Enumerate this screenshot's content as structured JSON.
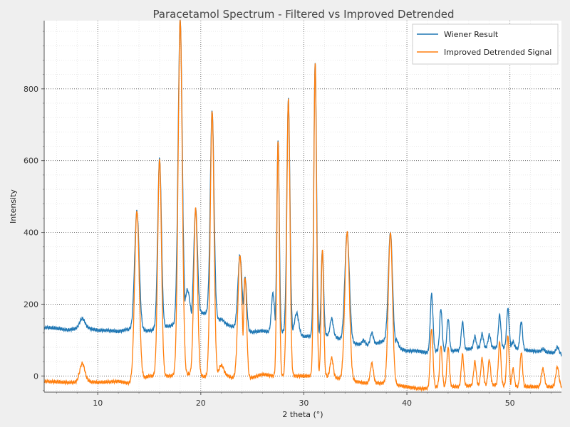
{
  "chart_data": {
    "type": "line",
    "title": "Paracetamol Spectrum - Filtered vs Improved Detrended",
    "xlabel": "2 theta (°)",
    "ylabel": "Intensity",
    "xlim": [
      4.8,
      55
    ],
    "ylim": [
      -45,
      990
    ],
    "x_ticks": [
      10,
      20,
      30,
      40,
      50
    ],
    "y_ticks": [
      0,
      200,
      400,
      600,
      800
    ],
    "grid": true,
    "legend_position": "top-right",
    "series": [
      {
        "name": "Wiener Result",
        "color": "#1f77b4",
        "baseline": [
          [
            5,
            135
          ],
          [
            6,
            133
          ],
          [
            7,
            128
          ],
          [
            8,
            132
          ],
          [
            9,
            134
          ],
          [
            10,
            127
          ],
          [
            11,
            127
          ],
          [
            12,
            124
          ],
          [
            13,
            130
          ],
          [
            14,
            128
          ],
          [
            15,
            126
          ],
          [
            17,
            140
          ],
          [
            19,
            148
          ],
          [
            20,
            175
          ],
          [
            21,
            175
          ],
          [
            22,
            150
          ],
          [
            23,
            138
          ],
          [
            24,
            130
          ],
          [
            25,
            122
          ],
          [
            26,
            126
          ],
          [
            27,
            120
          ],
          [
            28,
            122
          ],
          [
            29,
            118
          ],
          [
            30,
            110
          ],
          [
            31,
            112
          ],
          [
            32,
            115
          ],
          [
            33,
            110
          ],
          [
            34,
            95
          ],
          [
            35,
            90
          ],
          [
            36,
            85
          ],
          [
            37,
            90
          ],
          [
            38,
            100
          ],
          [
            39,
            80
          ],
          [
            40,
            70
          ],
          [
            41,
            70
          ],
          [
            42,
            65
          ],
          [
            43,
            70
          ],
          [
            44,
            68
          ],
          [
            45,
            72
          ],
          [
            46,
            75
          ],
          [
            47,
            78
          ],
          [
            48,
            80
          ],
          [
            49,
            78
          ],
          [
            50,
            80
          ],
          [
            51,
            75
          ],
          [
            52,
            70
          ],
          [
            53,
            68
          ],
          [
            54,
            65
          ],
          [
            55,
            60
          ]
        ],
        "peaks": [
          [
            8.5,
            160,
            0.25
          ],
          [
            13.0,
            130,
            0.2
          ],
          [
            13.8,
            460,
            0.22
          ],
          [
            16.0,
            605,
            0.18
          ],
          [
            18.0,
            990,
            0.2
          ],
          [
            18.7,
            240,
            0.25
          ],
          [
            19.5,
            465,
            0.18
          ],
          [
            21.1,
            740,
            0.18
          ],
          [
            22.0,
            158,
            0.2
          ],
          [
            23.8,
            336,
            0.2
          ],
          [
            24.3,
            275,
            0.15
          ],
          [
            27.0,
            230,
            0.15
          ],
          [
            27.5,
            655,
            0.12
          ],
          [
            28.5,
            770,
            0.15
          ],
          [
            29.3,
            175,
            0.2
          ],
          [
            31.1,
            875,
            0.13
          ],
          [
            31.8,
            352,
            0.12
          ],
          [
            32.7,
            160,
            0.15
          ],
          [
            34.2,
            400,
            0.22
          ],
          [
            35.8,
            100,
            0.15
          ],
          [
            36.6,
            120,
            0.15
          ],
          [
            38.4,
            400,
            0.2
          ],
          [
            39.0,
            100,
            0.15
          ],
          [
            42.4,
            228,
            0.13
          ],
          [
            43.3,
            187,
            0.12
          ],
          [
            44.0,
            160,
            0.12
          ],
          [
            45.4,
            150,
            0.12
          ],
          [
            46.6,
            110,
            0.12
          ],
          [
            47.3,
            118,
            0.12
          ],
          [
            48.0,
            115,
            0.12
          ],
          [
            49.0,
            170,
            0.12
          ],
          [
            49.8,
            188,
            0.12
          ],
          [
            50.3,
            95,
            0.12
          ],
          [
            51.1,
            152,
            0.12
          ],
          [
            53.2,
            75,
            0.15
          ],
          [
            54.6,
            80,
            0.15
          ]
        ]
      },
      {
        "name": "Improved Detrended Signal",
        "color": "#ff7f0e",
        "baseline": [
          [
            5,
            -15
          ],
          [
            7,
            -18
          ],
          [
            8,
            -18
          ],
          [
            9,
            -15
          ],
          [
            10,
            -18
          ],
          [
            12,
            -15
          ],
          [
            13,
            -20
          ],
          [
            14,
            -10
          ],
          [
            15,
            0
          ],
          [
            17,
            0
          ],
          [
            19,
            5
          ],
          [
            20,
            0
          ],
          [
            21,
            -5
          ],
          [
            22,
            10
          ],
          [
            23,
            -5
          ],
          [
            25,
            -5
          ],
          [
            26,
            5
          ],
          [
            27,
            0
          ],
          [
            28,
            0
          ],
          [
            30,
            0
          ],
          [
            31,
            0
          ],
          [
            32,
            0
          ],
          [
            33,
            -5
          ],
          [
            35,
            -15
          ],
          [
            36,
            -20
          ],
          [
            37,
            -20
          ],
          [
            38,
            -20
          ],
          [
            39,
            -25
          ],
          [
            40,
            -30
          ],
          [
            41,
            -35
          ],
          [
            42,
            -35
          ],
          [
            43,
            -30
          ],
          [
            45,
            -30
          ],
          [
            47,
            -25
          ],
          [
            49,
            -25
          ],
          [
            50,
            -30
          ],
          [
            52,
            -30
          ],
          [
            54,
            -30
          ],
          [
            55,
            -30
          ]
        ],
        "peaks": [
          [
            8.5,
            35,
            0.25
          ],
          [
            13.8,
            460,
            0.22
          ],
          [
            16.0,
            605,
            0.18
          ],
          [
            18.0,
            990,
            0.2
          ],
          [
            19.5,
            465,
            0.18
          ],
          [
            21.1,
            740,
            0.18
          ],
          [
            22.0,
            30,
            0.2
          ],
          [
            23.8,
            336,
            0.2
          ],
          [
            24.3,
            275,
            0.15
          ],
          [
            27.5,
            655,
            0.12
          ],
          [
            28.5,
            770,
            0.15
          ],
          [
            31.1,
            875,
            0.13
          ],
          [
            31.8,
            352,
            0.12
          ],
          [
            32.7,
            50,
            0.15
          ],
          [
            34.2,
            400,
            0.22
          ],
          [
            36.6,
            35,
            0.15
          ],
          [
            38.4,
            400,
            0.2
          ],
          [
            42.4,
            130,
            0.13
          ],
          [
            43.3,
            85,
            0.12
          ],
          [
            44.0,
            80,
            0.12
          ],
          [
            45.4,
            60,
            0.12
          ],
          [
            46.6,
            40,
            0.12
          ],
          [
            47.3,
            50,
            0.12
          ],
          [
            48.0,
            45,
            0.12
          ],
          [
            49.0,
            95,
            0.12
          ],
          [
            49.8,
            110,
            0.12
          ],
          [
            50.3,
            20,
            0.12
          ],
          [
            51.1,
            65,
            0.12
          ],
          [
            53.2,
            20,
            0.15
          ],
          [
            54.6,
            25,
            0.15
          ]
        ]
      }
    ]
  }
}
